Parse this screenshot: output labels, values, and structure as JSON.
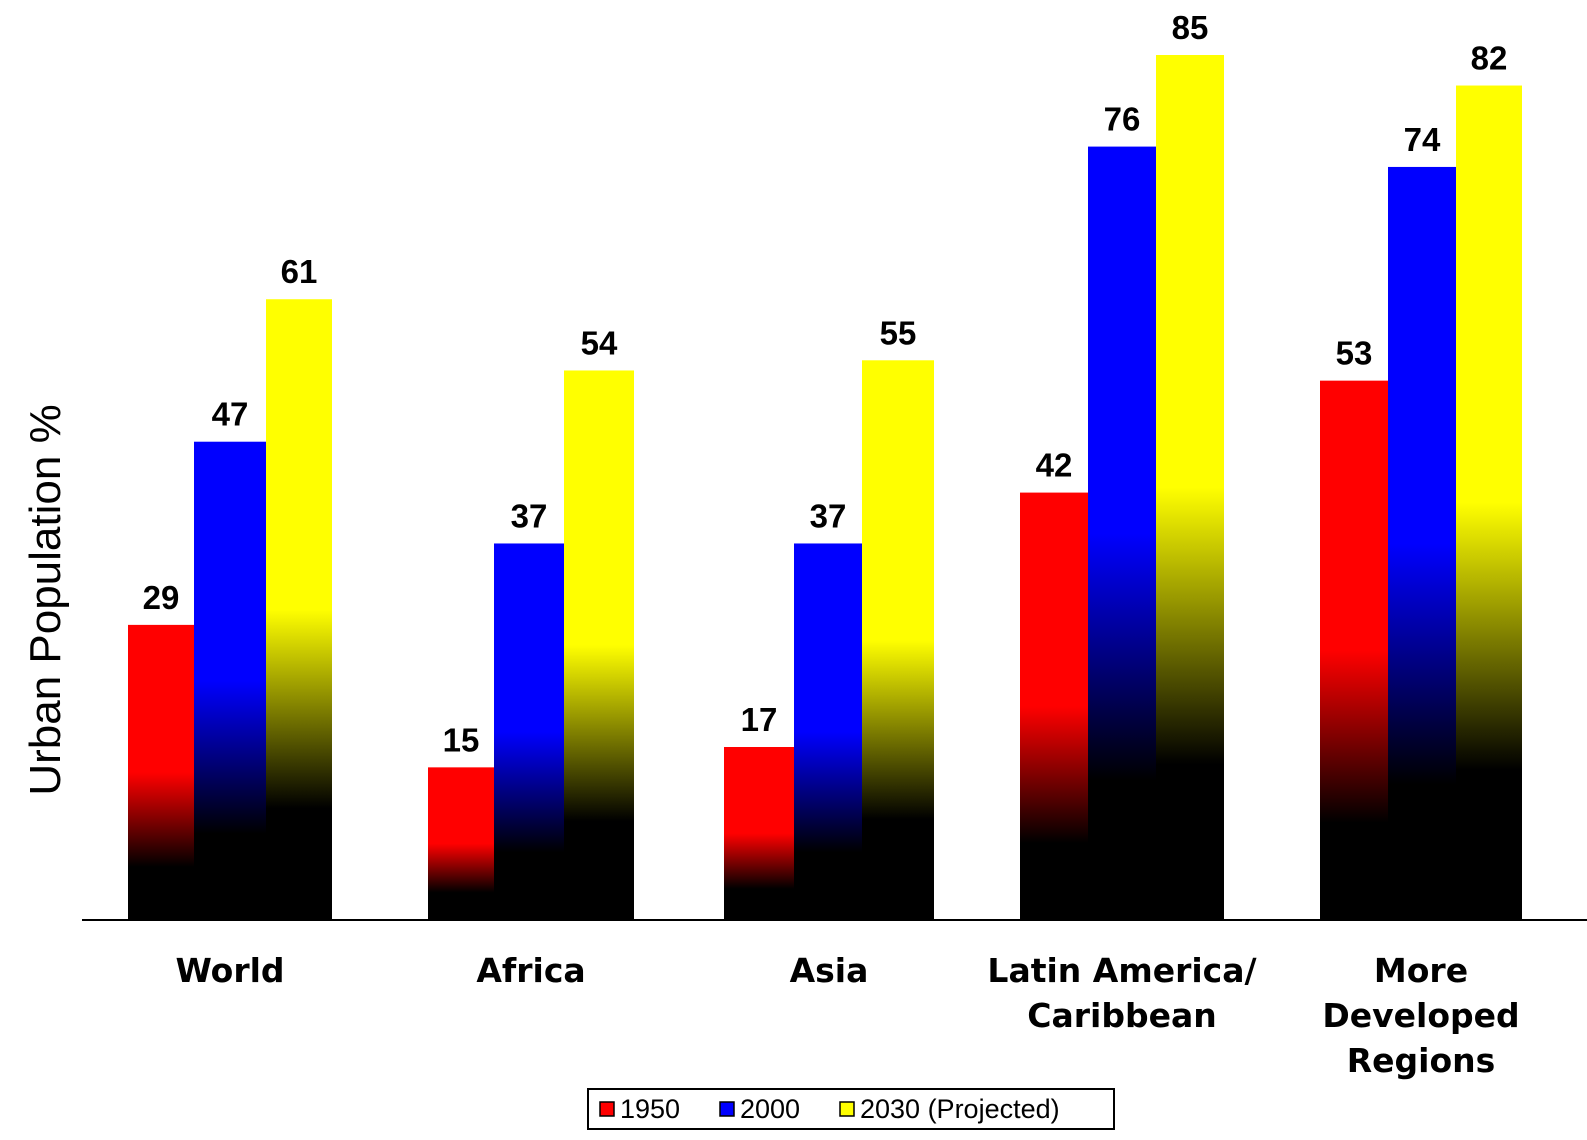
{
  "chart_data": {
    "type": "bar",
    "title": "",
    "xlabel": "",
    "ylabel": "Urban Population %",
    "categories": [
      [
        "World"
      ],
      [
        "Africa"
      ],
      [
        "Asia"
      ],
      [
        "Latin America/",
        "Caribbean"
      ],
      [
        "More",
        "Developed",
        "Regions"
      ]
    ],
    "series": [
      {
        "name": "1950",
        "color": "#ff0000",
        "values": [
          29,
          15,
          17,
          42,
          53
        ]
      },
      {
        "name": "2000",
        "color": "#0000ff",
        "values": [
          47,
          37,
          37,
          76,
          74
        ]
      },
      {
        "name": "2030 (Projected)",
        "color": "#ffff00",
        "values": [
          61,
          54,
          55,
          85,
          82
        ]
      }
    ],
    "ylim": [
      0,
      85
    ],
    "grid": false,
    "data_labels": true,
    "legend_position": "bottom"
  }
}
